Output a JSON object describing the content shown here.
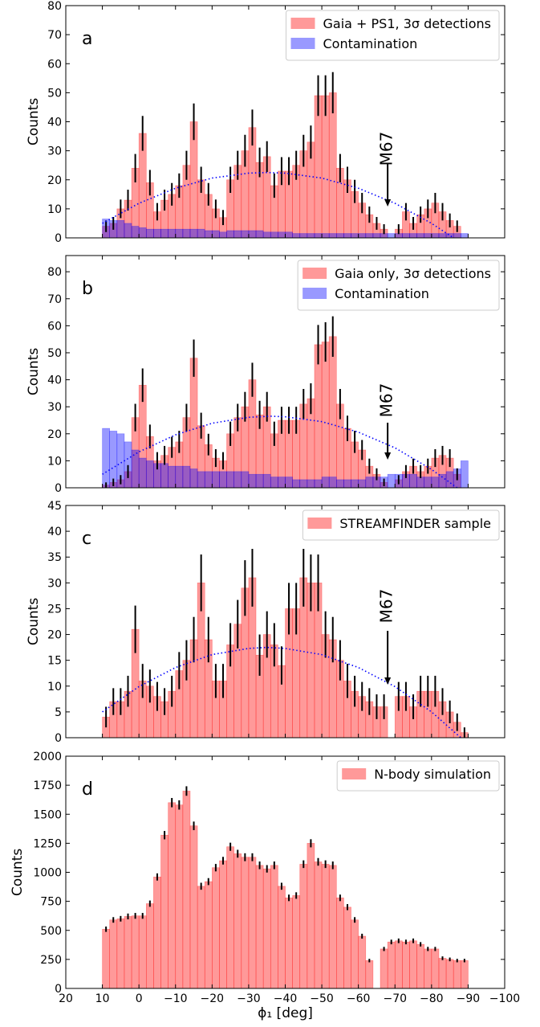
{
  "chart_data": [
    {
      "type": "histogram",
      "panel_label": "a",
      "ylabel": "Counts",
      "bins": [
        10,
        8,
        6,
        4,
        2,
        0,
        -2,
        -4,
        -6,
        -8,
        -10,
        -12,
        -14,
        -16,
        -18,
        -20,
        -22,
        -24,
        -26,
        -28,
        -30,
        -32,
        -34,
        -36,
        -38,
        -40,
        -42,
        -44,
        -46,
        -48,
        -50,
        -52,
        -54,
        -56,
        -58,
        -60,
        -62,
        -64,
        -66,
        -68,
        -70,
        -72,
        -74,
        -76,
        -78,
        -80,
        -82,
        -84,
        -86,
        -88,
        -90
      ],
      "series": [
        {
          "name": "Gaia + PS1, 3σ detections",
          "color": "#ff0000",
          "alpha": 0.4,
          "values": [
            4,
            5,
            10,
            13,
            24,
            36,
            19,
            9,
            13,
            15,
            18,
            25,
            40,
            20,
            15,
            10,
            7,
            20,
            25,
            30,
            38,
            26,
            28,
            18,
            23,
            23,
            25,
            30,
            33,
            49,
            49,
            50,
            24,
            20,
            16,
            12,
            8,
            5,
            3,
            0,
            3,
            9,
            5,
            8,
            10,
            12,
            9,
            6,
            4,
            0
          ],
          "errors": [
            2,
            2.2,
            3.2,
            3.6,
            4.9,
            6,
            4.4,
            3,
            3.6,
            3.9,
            4.2,
            5,
            6.3,
            4.5,
            3.9,
            3.2,
            2.6,
            4.5,
            5,
            5.5,
            6.2,
            5.1,
            5.3,
            4.2,
            4.8,
            4.8,
            5,
            5.5,
            5.7,
            7,
            7,
            7.1,
            4.9,
            4.5,
            4,
            3.5,
            2.8,
            2.2,
            1.7,
            0,
            1.7,
            3,
            2.2,
            2.8,
            3.2,
            3.5,
            3,
            2.4,
            2,
            0
          ]
        },
        {
          "name": "Contamination",
          "color": "#0000ff",
          "alpha": 0.4,
          "values": [
            6.5,
            6,
            6,
            5,
            4,
            3.5,
            3,
            3,
            3,
            3,
            3,
            3,
            3,
            3,
            2.5,
            2.5,
            2,
            2.5,
            2.5,
            2.5,
            2.5,
            2.5,
            2,
            2,
            2,
            2,
            1.5,
            1.5,
            1.5,
            1.5,
            1.5,
            1.5,
            1.5,
            1.5,
            1.5,
            1.5,
            1.5,
            1.5,
            1.5,
            1.5,
            1.5,
            1.5,
            1.5,
            1.5,
            1.5,
            1.5,
            1.5,
            1.5,
            1.5,
            1.5
          ]
        }
      ],
      "curve": {
        "color": "#0000ff",
        "x": [
          10,
          0,
          -10,
          -20,
          -30,
          -35,
          -40,
          -50,
          -60,
          -70,
          -80,
          -86
        ],
        "values": [
          5,
          11.9,
          17.1,
          20.6,
          22.3,
          22.5,
          22.3,
          20.6,
          17.1,
          11.9,
          5,
          0
        ]
      },
      "annotation": "M67",
      "xlim": [
        20,
        -100
      ],
      "xticks": [
        20,
        10,
        0,
        -10,
        -20,
        -30,
        -40,
        -50,
        -60,
        -70,
        -80,
        -90,
        -100
      ],
      "ylim": [
        0,
        80
      ],
      "yticks": [
        0,
        10,
        20,
        30,
        40,
        50,
        60,
        70,
        80
      ],
      "legend": "upper right"
    },
    {
      "type": "histogram",
      "panel_label": "b",
      "ylabel": "Counts",
      "bins": [
        10,
        8,
        6,
        4,
        2,
        0,
        -2,
        -4,
        -6,
        -8,
        -10,
        -12,
        -14,
        -16,
        -18,
        -20,
        -22,
        -24,
        -26,
        -28,
        -30,
        -32,
        -34,
        -36,
        -38,
        -40,
        -42,
        -44,
        -46,
        -48,
        -50,
        -52,
        -54,
        -56,
        -58,
        -60,
        -62,
        -64,
        -66,
        -68,
        -70,
        -72,
        -74,
        -76,
        -78,
        -80,
        -82,
        -84,
        -86,
        -88,
        -90
      ],
      "series": [
        {
          "name": "Gaia only, 3σ detections",
          "color": "#ff0000",
          "alpha": 0.4,
          "values": [
            1,
            2,
            3,
            6,
            26,
            38,
            19,
            10,
            12,
            15,
            17,
            26,
            48,
            23,
            16,
            11,
            10,
            20,
            26,
            30,
            40,
            27,
            30,
            20,
            25,
            25,
            25,
            31,
            33,
            53,
            54,
            56,
            31,
            22,
            17,
            14,
            8,
            5,
            2,
            0,
            3,
            6,
            8,
            6,
            8,
            11,
            12,
            11,
            5,
            0
          ],
          "errors": [
            1,
            1.4,
            1.7,
            2.4,
            5.1,
            6.2,
            4.4,
            3.2,
            3.5,
            3.9,
            4.1,
            5.1,
            6.9,
            4.8,
            4,
            3.3,
            3.2,
            4.5,
            5.1,
            5.5,
            6.3,
            5.2,
            5.5,
            4.5,
            5,
            5,
            5,
            5.6,
            5.7,
            7.3,
            7.3,
            7.5,
            5.6,
            4.7,
            4.1,
            3.7,
            2.8,
            2.2,
            1.4,
            0,
            1.7,
            2.4,
            2.8,
            2.4,
            2.8,
            3.3,
            3.5,
            3.3,
            2.2,
            0
          ]
        },
        {
          "name": "Contamination",
          "color": "#0000ff",
          "alpha": 0.4,
          "values": [
            22,
            21,
            20,
            17,
            14,
            11,
            10,
            9,
            9,
            8,
            8,
            8,
            7,
            6,
            6,
            6,
            6,
            6,
            6,
            6,
            5,
            5,
            5,
            4,
            4,
            4,
            3,
            3,
            3,
            3,
            4,
            4,
            3,
            3,
            3,
            3,
            4,
            4,
            4,
            5,
            5,
            5,
            5,
            4,
            4,
            4,
            5,
            6,
            7,
            10
          ]
        }
      ],
      "curve": {
        "color": "#0000ff",
        "x": [
          10,
          0,
          -10,
          -20,
          -30,
          -36,
          -40,
          -50,
          -60,
          -70,
          -80,
          -87
        ],
        "values": [
          5,
          13.3,
          19.6,
          23.9,
          26.1,
          26.5,
          26.3,
          24.5,
          20.6,
          14.8,
          6.8,
          0
        ]
      },
      "annotation": "M67",
      "xlim": [
        20,
        -100
      ],
      "xticks": [
        20,
        10,
        0,
        -10,
        -20,
        -30,
        -40,
        -50,
        -60,
        -70,
        -80,
        -90,
        -100
      ],
      "ylim": [
        0,
        86
      ],
      "yticks": [
        0,
        10,
        20,
        30,
        40,
        50,
        60,
        70,
        80
      ],
      "legend": "upper right"
    },
    {
      "type": "histogram",
      "panel_label": "c",
      "ylabel": "Counts",
      "bins": [
        10,
        8,
        6,
        4,
        2,
        0,
        -2,
        -4,
        -6,
        -8,
        -10,
        -12,
        -14,
        -16,
        -18,
        -20,
        -22,
        -24,
        -26,
        -28,
        -30,
        -32,
        -34,
        -36,
        -38,
        -40,
        -42,
        -44,
        -46,
        -48,
        -50,
        -52,
        -54,
        -56,
        -58,
        -60,
        -62,
        -64,
        -66,
        -68,
        -70,
        -72,
        -74,
        -76,
        -78,
        -80,
        -82,
        -84,
        -86,
        -88,
        -90
      ],
      "series": [
        {
          "name": "STREAMFINDER sample",
          "color": "#ff0000",
          "alpha": 0.4,
          "values": [
            4,
            7,
            7,
            9,
            21,
            11,
            10,
            8,
            7,
            9,
            13,
            15,
            19,
            30,
            19,
            11,
            11,
            18,
            22,
            29,
            31,
            16,
            20,
            18,
            14,
            25,
            25,
            31,
            30,
            30,
            20,
            19,
            15,
            11,
            9,
            8,
            7,
            6,
            6,
            0,
            8,
            8,
            6,
            9,
            9,
            9,
            7,
            5,
            3,
            1
          ],
          "errors": [
            2,
            2.6,
            2.6,
            3,
            4.6,
            3.3,
            3.2,
            2.8,
            2.6,
            3,
            3.6,
            3.9,
            4.4,
            5.5,
            4.4,
            3.3,
            3.3,
            4.2,
            4.7,
            5.4,
            5.6,
            4,
            4.5,
            4.2,
            3.7,
            5,
            5,
            5.6,
            5.5,
            5.5,
            4.5,
            4.4,
            3.9,
            3.3,
            3,
            2.8,
            2.6,
            2.4,
            2.4,
            0,
            2.8,
            2.8,
            2.4,
            3,
            3,
            3,
            2.6,
            2.2,
            1.7,
            1
          ]
        }
      ],
      "curve": {
        "color": "#0000ff",
        "x": [
          10,
          0,
          -10,
          -20,
          -30,
          -35,
          -40,
          -50,
          -60,
          -70,
          -80,
          -88
        ],
        "values": [
          5,
          9.9,
          13.6,
          16.1,
          17.3,
          17.5,
          17.3,
          16.1,
          13.6,
          9.9,
          5,
          0
        ]
      },
      "annotation": "M67",
      "xlim": [
        20,
        -100
      ],
      "xticks": [
        20,
        10,
        0,
        -10,
        -20,
        -30,
        -40,
        -50,
        -60,
        -70,
        -80,
        -90,
        -100
      ],
      "ylim": [
        0,
        45
      ],
      "yticks": [
        0,
        5,
        10,
        15,
        20,
        25,
        30,
        35,
        40,
        45
      ],
      "legend": "upper right"
    },
    {
      "type": "histogram",
      "panel_label": "d",
      "ylabel": "Counts",
      "xlabel": "ϕ₁ [deg]",
      "bins": [
        10,
        8,
        6,
        4,
        2,
        0,
        -2,
        -4,
        -6,
        -8,
        -10,
        -12,
        -14,
        -16,
        -18,
        -20,
        -22,
        -24,
        -26,
        -28,
        -30,
        -32,
        -34,
        -36,
        -38,
        -40,
        -42,
        -44,
        -46,
        -48,
        -50,
        -52,
        -54,
        -56,
        -58,
        -60,
        -62,
        -64,
        -66,
        -68,
        -70,
        -72,
        -74,
        -76,
        -78,
        -80,
        -82,
        -84,
        -86,
        -88,
        -90
      ],
      "series": [
        {
          "name": "N-body simulation",
          "color": "#ff0000",
          "alpha": 0.4,
          "values": [
            510,
            590,
            600,
            620,
            625,
            625,
            730,
            960,
            1320,
            1600,
            1580,
            1700,
            1400,
            880,
            920,
            1040,
            1100,
            1220,
            1160,
            1130,
            1130,
            1060,
            1030,
            1060,
            880,
            780,
            800,
            1070,
            1250,
            1090,
            1070,
            1060,
            780,
            700,
            590,
            450,
            240,
            0,
            340,
            400,
            410,
            400,
            410,
            380,
            340,
            340,
            260,
            250,
            240,
            240
          ],
          "errors": [
            23,
            24,
            24,
            25,
            25,
            25,
            27,
            31,
            36,
            40,
            40,
            41,
            37,
            30,
            30,
            32,
            33,
            35,
            34,
            34,
            34,
            33,
            32,
            33,
            30,
            28,
            28,
            33,
            35,
            33,
            33,
            33,
            28,
            26,
            24,
            21,
            15,
            0,
            18,
            20,
            20,
            20,
            20,
            19,
            18,
            18,
            16,
            16,
            15,
            15
          ]
        }
      ],
      "xlim": [
        20,
        -100
      ],
      "xticks": [
        20,
        10,
        0,
        {
          "value": -10,
          "label": "−10"
        },
        {
          "value": -20,
          "label": "−20"
        },
        {
          "value": -30,
          "label": "−30"
        },
        {
          "value": -40,
          "label": "−40"
        },
        {
          "value": -50,
          "label": "−50"
        },
        {
          "value": -60,
          "label": "−60"
        },
        {
          "value": -70,
          "label": "−70"
        },
        {
          "value": -80,
          "label": "−80"
        },
        {
          "value": -90,
          "label": "−90"
        },
        {
          "value": -100,
          "label": "−100"
        }
      ],
      "ylim": [
        0,
        2000
      ],
      "yticks": [
        0,
        250,
        500,
        750,
        1000,
        1250,
        1500,
        1750,
        2000
      ],
      "legend": "upper right"
    }
  ]
}
